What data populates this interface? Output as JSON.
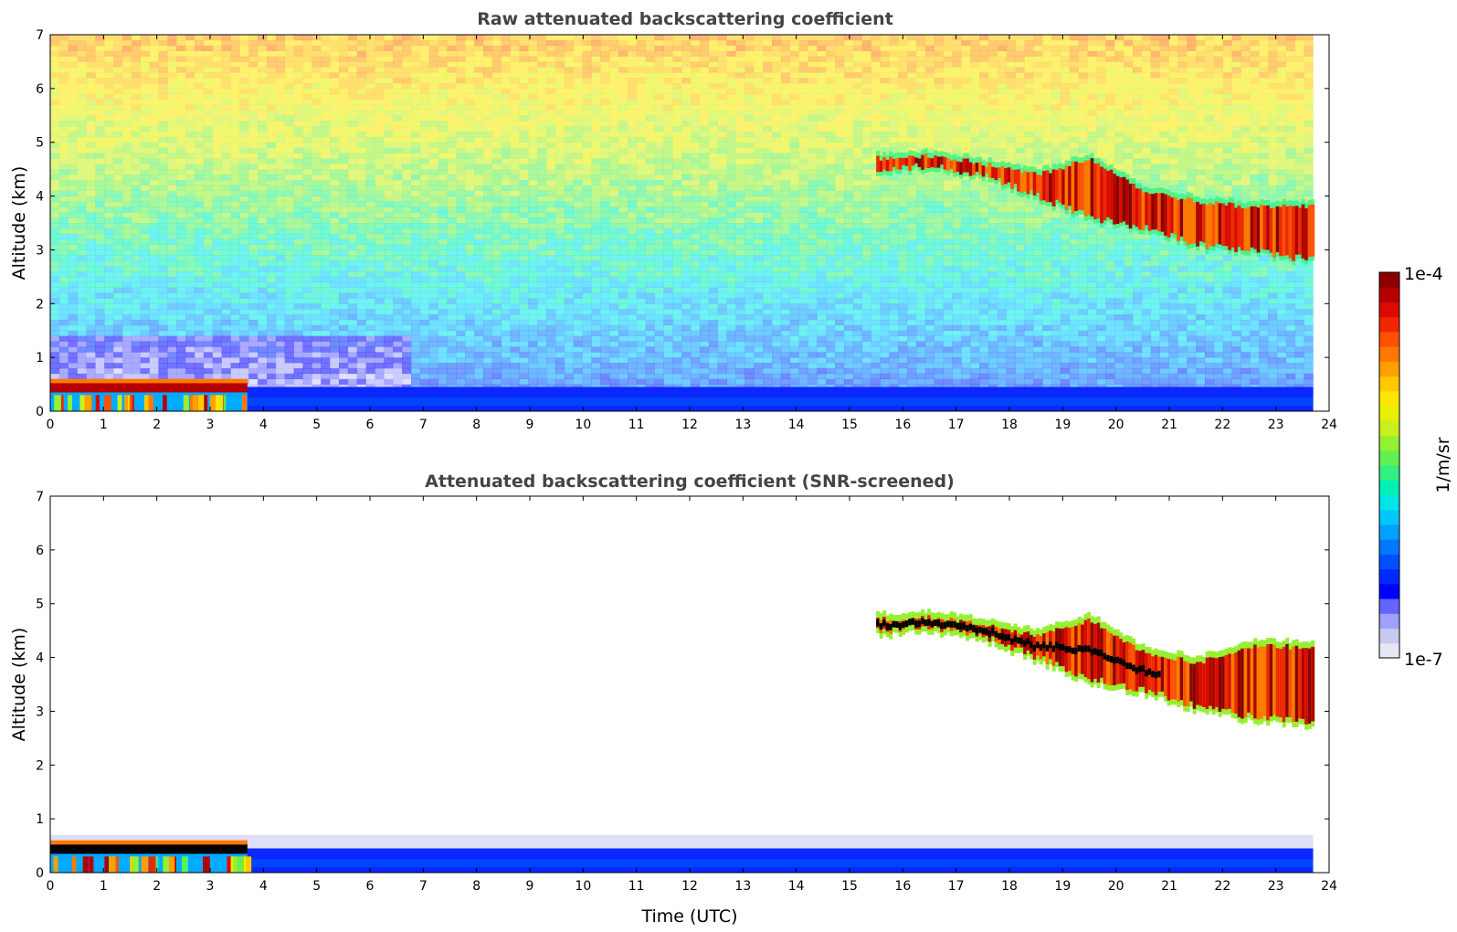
{
  "chart_data": [
    {
      "type": "heatmap",
      "title": "Raw attenuated backscattering coefficient",
      "xlabel": "",
      "ylabel": "Altitude (km)",
      "xlim": [
        0,
        24
      ],
      "ylim": [
        0,
        7
      ],
      "xticks": [
        "0",
        "1",
        "2",
        "3",
        "4",
        "5",
        "6",
        "7",
        "8",
        "9",
        "10",
        "11",
        "12",
        "13",
        "14",
        "15",
        "16",
        "17",
        "18",
        "19",
        "20",
        "21",
        "22",
        "23",
        "24"
      ],
      "yticks": [
        "0",
        "1",
        "2",
        "3",
        "4",
        "5",
        "6",
        "7"
      ],
      "data_end_hour": 23.7,
      "noise": true,
      "boundary_layer_top_km": 0.4,
      "low_cloud": {
        "start": 0.0,
        "end": 3.7,
        "base_km": 0.35,
        "top_km": 0.55
      },
      "cirrus_layer": [
        {
          "x": 15.5,
          "base": 4.5,
          "top": 4.7
        },
        {
          "x": 16.5,
          "base": 4.55,
          "top": 4.75
        },
        {
          "x": 17.5,
          "base": 4.4,
          "top": 4.6
        },
        {
          "x": 18.5,
          "base": 4.0,
          "top": 4.4
        },
        {
          "x": 19.5,
          "base": 3.6,
          "top": 4.7
        },
        {
          "x": 20.5,
          "base": 3.4,
          "top": 4.1
        },
        {
          "x": 21.5,
          "base": 3.1,
          "top": 3.9
        },
        {
          "x": 22.5,
          "base": 3.0,
          "top": 3.8
        },
        {
          "x": 23.7,
          "base": 2.8,
          "top": 3.8
        }
      ]
    },
    {
      "type": "heatmap",
      "title": "Attenuated backscattering coefficient (SNR-screened)",
      "xlabel": "Time (UTC)",
      "ylabel": "Altitude (km)",
      "xlim": [
        0,
        24
      ],
      "ylim": [
        0,
        7
      ],
      "xticks": [
        "0",
        "1",
        "2",
        "3",
        "4",
        "5",
        "6",
        "7",
        "8",
        "9",
        "10",
        "11",
        "12",
        "13",
        "14",
        "15",
        "16",
        "17",
        "18",
        "19",
        "20",
        "21",
        "22",
        "23",
        "24"
      ],
      "yticks": [
        "0",
        "1",
        "2",
        "3",
        "4",
        "5",
        "6",
        "7"
      ],
      "data_end_hour": 23.7,
      "noise": false,
      "boundary_layer_top_km": 0.7,
      "low_cloud": {
        "start": 0.0,
        "end": 3.7,
        "base_km": 0.35,
        "top_km": 0.55
      },
      "cirrus_layer": [
        {
          "x": 15.5,
          "base": 4.5,
          "top": 4.7
        },
        {
          "x": 16.5,
          "base": 4.55,
          "top": 4.75
        },
        {
          "x": 17.5,
          "base": 4.4,
          "top": 4.6
        },
        {
          "x": 18.5,
          "base": 4.0,
          "top": 4.4
        },
        {
          "x": 19.5,
          "base": 3.6,
          "top": 4.7
        },
        {
          "x": 20.5,
          "base": 3.4,
          "top": 4.1
        },
        {
          "x": 21.5,
          "base": 3.1,
          "top": 3.9
        },
        {
          "x": 22.5,
          "base": 2.9,
          "top": 4.2
        },
        {
          "x": 23.7,
          "base": 2.8,
          "top": 4.2
        }
      ]
    }
  ],
  "colorbar": {
    "max_label": "1e-4",
    "min_label": "1e-7",
    "unit_label": "1/m/sr",
    "colors": [
      "#e6e6f5",
      "#c8c8f0",
      "#a0a0ff",
      "#6464ff",
      "#0000ff",
      "#0028ff",
      "#0050ff",
      "#0078ff",
      "#00a0ff",
      "#00c8ff",
      "#00e6e6",
      "#00f0b4",
      "#32f082",
      "#64f050",
      "#96f032",
      "#c8f01e",
      "#e6f000",
      "#ffe600",
      "#ffc800",
      "#ffa000",
      "#ff7800",
      "#ff5000",
      "#f02800",
      "#dc0a00",
      "#b40000",
      "#8c0000"
    ]
  }
}
